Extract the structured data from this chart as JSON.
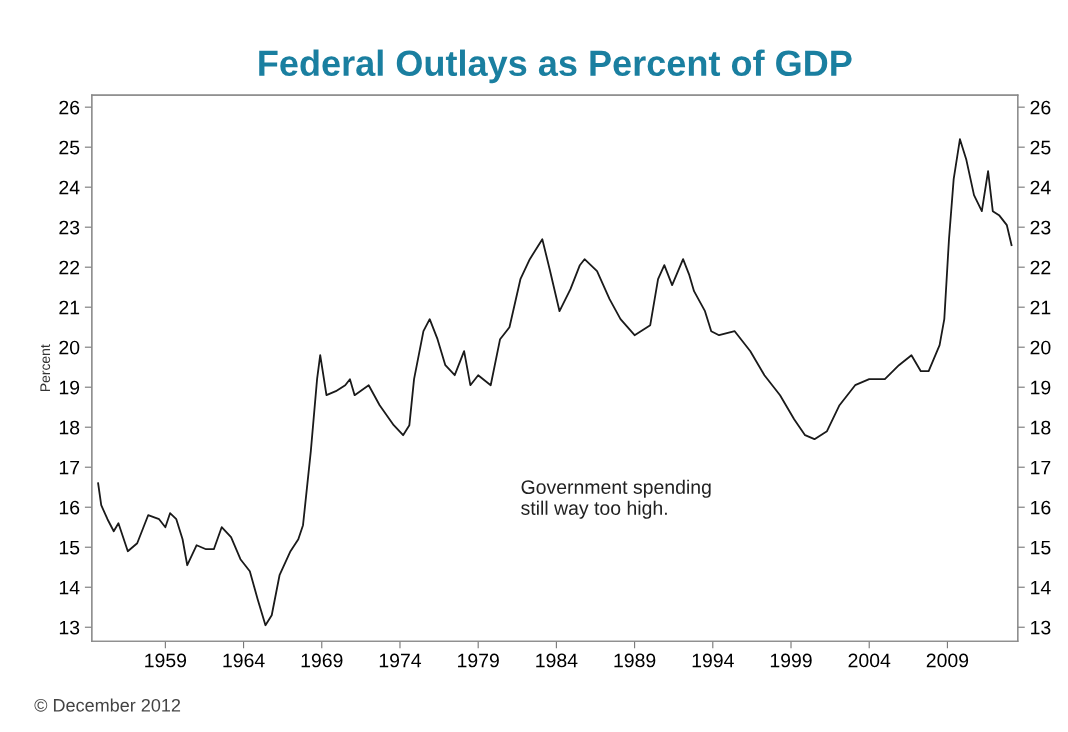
{
  "chart_data": {
    "type": "line",
    "title": "Federal Outlays as Percent of GDP",
    "ylabel": "Percent",
    "annotations": [
      "Government spending\nstill way too high.",
      "© December 2012"
    ],
    "series": [
      {
        "color": "#1a1a1a",
        "x": [
          1954.7,
          1954.9,
          1955.3,
          1955.7,
          1956.0,
          1956.6,
          1957.2,
          1957.6,
          1957.9,
          1958.6,
          1959.0,
          1959.3,
          1959.7,
          1960.1,
          1960.4,
          1961.0,
          1961.6,
          1962.1,
          1962.6,
          1963.2,
          1963.8,
          1964.4,
          1964.9,
          1965.4,
          1965.8,
          1966.3,
          1967.0,
          1967.5,
          1967.8,
          1968.3,
          1968.7,
          1968.9,
          1969.3,
          1969.9,
          1970.5,
          1970.8,
          1971.1,
          1972.0,
          1972.7,
          1973.6,
          1974.2,
          1974.6,
          1974.9,
          1975.5,
          1975.9,
          1976.4,
          1976.9,
          1977.5,
          1978.1,
          1978.5,
          1979.0,
          1979.8,
          1980.4,
          1981.0,
          1981.7,
          1982.3,
          1983.1,
          1983.6,
          1984.2,
          1984.9,
          1985.5,
          1985.8,
          1986.6,
          1987.4,
          1988.1,
          1989.0,
          1990.0,
          1990.5,
          1990.9,
          1991.4,
          1992.1,
          1992.5,
          1992.8,
          1993.5,
          1993.9,
          1994.4,
          1995.4,
          1996.4,
          1997.3,
          1998.3,
          1999.2,
          1999.9,
          2000.5,
          2001.3,
          2002.1,
          2003.1,
          2004.0,
          2005.0,
          2005.9,
          2006.7,
          2007.3,
          2007.8,
          2008.5,
          2008.8,
          2009.1,
          2009.4,
          2009.8,
          2010.2,
          2010.7,
          2011.2,
          2011.6,
          2011.9,
          2012.3,
          2012.8,
          2013.1
        ],
        "values": [
          16.6,
          16.05,
          15.7,
          15.4,
          15.6,
          14.9,
          15.1,
          15.5,
          15.8,
          15.7,
          15.5,
          15.85,
          15.7,
          15.2,
          14.55,
          15.05,
          14.95,
          14.95,
          15.5,
          15.25,
          14.7,
          14.4,
          13.7,
          13.05,
          13.3,
          14.3,
          14.9,
          15.2,
          15.55,
          17.4,
          19.2,
          19.8,
          18.8,
          18.9,
          19.05,
          19.2,
          18.8,
          19.05,
          18.55,
          18.05,
          17.8,
          18.05,
          19.2,
          20.4,
          20.7,
          20.2,
          19.55,
          19.3,
          19.9,
          19.05,
          19.3,
          19.05,
          20.2,
          20.5,
          21.7,
          22.2,
          22.7,
          21.9,
          20.9,
          21.45,
          22.05,
          22.2,
          21.9,
          21.2,
          20.7,
          20.3,
          20.55,
          21.7,
          22.05,
          21.55,
          22.2,
          21.8,
          21.4,
          20.9,
          20.4,
          20.3,
          20.4,
          19.9,
          19.3,
          18.8,
          18.2,
          17.8,
          17.7,
          17.9,
          18.55,
          19.05,
          19.2,
          19.2,
          19.55,
          19.8,
          19.4,
          19.4,
          20.05,
          20.7,
          22.7,
          24.2,
          25.2,
          24.7,
          23.8,
          23.4,
          24.4,
          23.4,
          23.3,
          23.05,
          22.55
        ]
      }
    ],
    "xlim": [
      1954.3,
      2013.5
    ],
    "xticks": [
      1959,
      1964,
      1969,
      1974,
      1979,
      1984,
      1989,
      1994,
      1999,
      2004,
      2009
    ],
    "ylim": [
      12.65,
      26.3
    ],
    "yticks": [
      13,
      14,
      15,
      16,
      17,
      18,
      19,
      20,
      21,
      22,
      23,
      24,
      25,
      26
    ],
    "y2lim": [
      12.65,
      26.3
    ],
    "y2ticks": [
      13,
      14,
      15,
      16,
      17,
      18,
      19,
      20,
      21,
      22,
      23,
      24,
      25,
      26
    ],
    "grid": false,
    "legend": false,
    "line_style": "solid",
    "marker": "none"
  }
}
